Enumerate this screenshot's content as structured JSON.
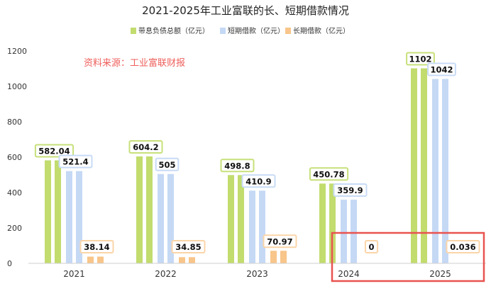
{
  "chart_data": {
    "type": "bar",
    "title": "2021-2025年工业富联的长、短期借款情况",
    "categories": [
      "2021",
      "2022",
      "2023",
      "2024",
      "2025"
    ],
    "series": [
      {
        "name": "带息负债总额（亿元）",
        "color": "#c2dc6e",
        "values": [
          582.04,
          604.2,
          498.8,
          450.78,
          1102
        ],
        "labels": [
          "582.04",
          "604.2",
          "498.8",
          "450.78",
          "1102"
        ]
      },
      {
        "name": "短期借款（亿元）",
        "color": "#c5d9f5",
        "values": [
          521.4,
          505,
          410.9,
          359.9,
          1042
        ],
        "labels": [
          "521.4",
          "505",
          "410.9",
          "359.9",
          "1042"
        ]
      },
      {
        "name": "长期借款（亿元）",
        "color": "#f8c58a",
        "values": [
          38.14,
          34.85,
          70.97,
          0,
          0.036
        ],
        "labels": [
          "38.14",
          "34.85",
          "70.97",
          "0",
          "0.036"
        ]
      }
    ],
    "ylim": [
      0,
      1200
    ],
    "yticks": [
      "0",
      "200",
      "400",
      "600",
      "800",
      "1000",
      "1200"
    ],
    "grid": false,
    "legend": "top-center",
    "annotation": "资料来源：工业富联财报",
    "annotation_color": "#ee5f5b",
    "highlight_color": "#e8534f",
    "highlight_categories": [
      "2024",
      "2025"
    ]
  }
}
